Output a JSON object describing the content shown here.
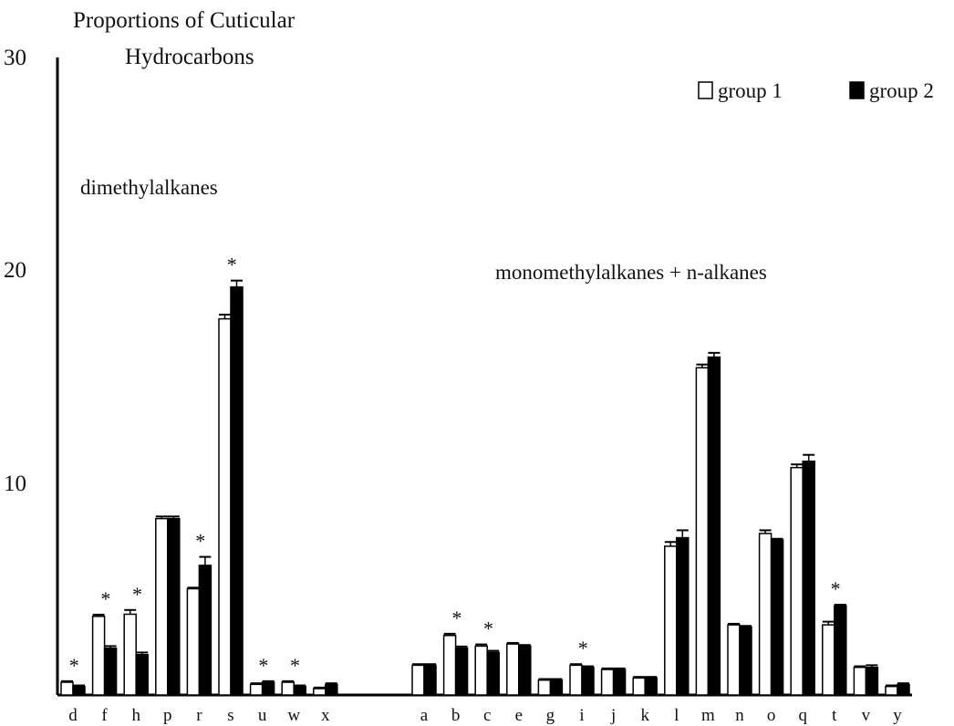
{
  "chart_data": {
    "type": "bar",
    "title_lines": [
      "Proportions of Cuticular",
      "Hydrocarbons"
    ],
    "ylim": [
      0,
      30
    ],
    "yticks": [
      "10",
      "20",
      "30"
    ],
    "series": [
      {
        "name": "group 1",
        "color": "#ffffff"
      },
      {
        "name": "group 2",
        "color": "#000000"
      }
    ],
    "groups": [
      {
        "label": "dimethylalkanes",
        "items": [
          {
            "cat": "d",
            "g1": 0.6,
            "g1_err": 0.05,
            "g2": 0.4,
            "g2_err": 0.05,
            "sig": true
          },
          {
            "cat": "f",
            "g1": 3.7,
            "g1_err": 0.08,
            "g2": 2.2,
            "g2_err": 0.1,
            "sig": true
          },
          {
            "cat": "h",
            "g1": 3.8,
            "g1_err": 0.2,
            "g2": 1.9,
            "g2_err": 0.1,
            "sig": true
          },
          {
            "cat": "p",
            "g1": 8.3,
            "g1_err": 0.1,
            "g2": 8.3,
            "g2_err": 0.1,
            "sig": false
          },
          {
            "cat": "r",
            "g1": 5.0,
            "g1_err": 0.05,
            "g2": 6.1,
            "g2_err": 0.4,
            "sig": true
          },
          {
            "cat": "s",
            "g1": 17.7,
            "g1_err": 0.2,
            "g2": 19.2,
            "g2_err": 0.3,
            "sig": true
          },
          {
            "cat": "u",
            "g1": 0.5,
            "g1_err": 0.05,
            "g2": 0.6,
            "g2_err": 0.05,
            "sig": true
          },
          {
            "cat": "w",
            "g1": 0.6,
            "g1_err": 0.05,
            "g2": 0.4,
            "g2_err": 0.05,
            "sig": true
          },
          {
            "cat": "x",
            "g1": 0.3,
            "g1_err": 0.05,
            "g2": 0.5,
            "g2_err": 0.05,
            "sig": false
          }
        ]
      },
      {
        "label": "monomethylalkanes + n-alkanes",
        "items": [
          {
            "cat": "a",
            "g1": 1.4,
            "g1_err": 0.05,
            "g2": 1.4,
            "g2_err": 0.05,
            "sig": false
          },
          {
            "cat": "b",
            "g1": 2.8,
            "g1_err": 0.08,
            "g2": 2.2,
            "g2_err": 0.08,
            "sig": true
          },
          {
            "cat": "c",
            "g1": 2.3,
            "g1_err": 0.08,
            "g2": 2.0,
            "g2_err": 0.08,
            "sig": true
          },
          {
            "cat": "e",
            "g1": 2.4,
            "g1_err": 0.05,
            "g2": 2.3,
            "g2_err": 0.05,
            "sig": false
          },
          {
            "cat": "g",
            "g1": 0.7,
            "g1_err": 0.05,
            "g2": 0.7,
            "g2_err": 0.05,
            "sig": false
          },
          {
            "cat": "i",
            "g1": 1.4,
            "g1_err": 0.05,
            "g2": 1.3,
            "g2_err": 0.05,
            "sig": true
          },
          {
            "cat": "j",
            "g1": 1.2,
            "g1_err": 0.05,
            "g2": 1.2,
            "g2_err": 0.05,
            "sig": false
          },
          {
            "cat": "k",
            "g1": 0.8,
            "g1_err": 0.05,
            "g2": 0.8,
            "g2_err": 0.05,
            "sig": false
          },
          {
            "cat": "l",
            "g1": 7.0,
            "g1_err": 0.2,
            "g2": 7.4,
            "g2_err": 0.35,
            "sig": false
          },
          {
            "cat": "m",
            "g1": 15.4,
            "g1_err": 0.15,
            "g2": 15.9,
            "g2_err": 0.2,
            "sig": false
          },
          {
            "cat": "n",
            "g1": 3.3,
            "g1_err": 0.05,
            "g2": 3.2,
            "g2_err": 0.05,
            "sig": false
          },
          {
            "cat": "o",
            "g1": 7.6,
            "g1_err": 0.15,
            "g2": 7.3,
            "g2_err": 0.05,
            "sig": false
          },
          {
            "cat": "q",
            "g1": 10.7,
            "g1_err": 0.15,
            "g2": 11.0,
            "g2_err": 0.3,
            "sig": false
          },
          {
            "cat": "t",
            "g1": 3.3,
            "g1_err": 0.15,
            "g2": 4.2,
            "g2_err": 0.05,
            "sig": true
          },
          {
            "cat": "v",
            "g1": 1.3,
            "g1_err": 0.05,
            "g2": 1.3,
            "g2_err": 0.1,
            "sig": false
          },
          {
            "cat": "y",
            "g1": 0.4,
            "g1_err": 0.05,
            "g2": 0.5,
            "g2_err": 0.05,
            "sig": false
          }
        ]
      }
    ]
  }
}
